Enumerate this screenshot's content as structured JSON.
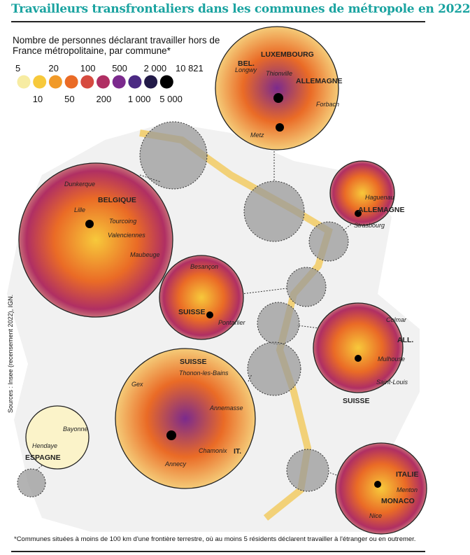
{
  "title": "Travailleurs transfrontaliers dans les communes de métropole en 2022",
  "legend": {
    "title_line1": "Nombre de personnes déclarant travailler hors de",
    "title_line2": "France métropolitaine, par commune*",
    "top_labels": [
      "5",
      "20",
      "100",
      "500",
      "2 000",
      "10 821"
    ],
    "bottom_labels": [
      "10",
      "50",
      "200",
      "1 000",
      "5 000"
    ],
    "colors": [
      "#f7eca2",
      "#f7c93b",
      "#f19a28",
      "#ea6b26",
      "#d64b40",
      "#b02f63",
      "#7b2a8d",
      "#4b2a83",
      "#221a48",
      "#000000"
    ]
  },
  "insets": {
    "luxembourg": {
      "countries": [
        "BEL.",
        "LUXEMBOURG",
        "ALLEMAGNE"
      ],
      "cities": [
        "Longwy",
        "Thionville",
        "Forbach",
        "Metz"
      ]
    },
    "belgique": {
      "countries": [
        "BELGIQUE"
      ],
      "cities": [
        "Dunkerque",
        "Lille",
        "Tourcoing",
        "Valenciennes",
        "Maubeuge"
      ]
    },
    "alsace_nord": {
      "countries": [
        "ALLEMAGNE"
      ],
      "cities": [
        "Haguenau",
        "Strasbourg"
      ]
    },
    "doubs": {
      "countries": [
        "SUISSE"
      ],
      "cities": [
        "Besançon",
        "Pontarlier"
      ]
    },
    "alsace_sud": {
      "countries": [
        "ALL.",
        "SUISSE"
      ],
      "cities": [
        "Colmar",
        "Mulhouse",
        "Saint-Louis"
      ]
    },
    "savoie": {
      "countries": [
        "SUISSE",
        "IT."
      ],
      "cities": [
        "Gex",
        "Thonon-les-Bains",
        "Annemasse",
        "Chamonix",
        "Annecy"
      ]
    },
    "pays_basque": {
      "countries": [
        "ESPAGNE"
      ],
      "cities": [
        "Bayonne",
        "Hendaye"
      ]
    },
    "cote_azur": {
      "countries": [
        "ITALIE",
        "MONACO"
      ],
      "cities": [
        "Menton",
        "Nice"
      ]
    }
  },
  "sources": "Sources : Insee (recensement 2022), IGN.",
  "footnote": "*Communes situées à moins de 100 km d'une frontière terrestre, où au moins 5 résidents déclarent travailler à l'étranger ou en outremer."
}
